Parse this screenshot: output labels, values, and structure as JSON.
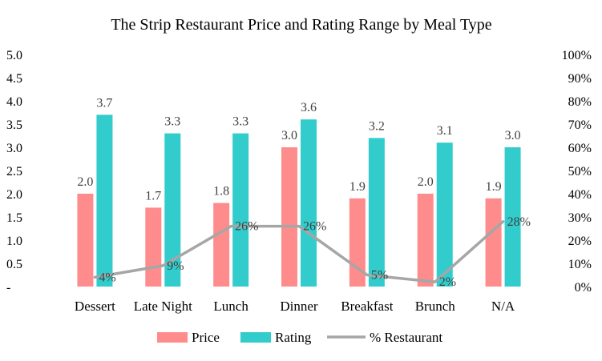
{
  "chart_data": {
    "type": "bar",
    "title": "The Strip Restaurant Price and Rating Range by Meal Type",
    "categories": [
      "Dessert",
      "Late Night",
      "Lunch",
      "Dinner",
      "Breakfast",
      "Brunch",
      "N/A"
    ],
    "series": [
      {
        "name": "Price",
        "type": "bar",
        "axis": "left",
        "color": "#FF8C8C",
        "values": [
          2.0,
          1.7,
          1.8,
          3.0,
          1.9,
          2.0,
          1.9
        ]
      },
      {
        "name": "Rating",
        "type": "bar",
        "axis": "left",
        "color": "#33CCCC",
        "values": [
          3.7,
          3.3,
          3.3,
          3.6,
          3.2,
          3.1,
          3.0
        ]
      },
      {
        "name": "% Restaurant",
        "type": "line",
        "axis": "right",
        "color": "#A6A6A6",
        "values": [
          4,
          9,
          26,
          26,
          5,
          2,
          28
        ]
      }
    ],
    "y_left": {
      "ylim": [
        0,
        5.0
      ],
      "ticks": [
        "-",
        "0.5",
        "1.0",
        "1.5",
        "2.0",
        "2.5",
        "3.0",
        "3.5",
        "4.0",
        "4.5",
        "5.0"
      ]
    },
    "y_right": {
      "ylim": [
        0,
        100
      ],
      "ticks": [
        "0%",
        "10%",
        "20%",
        "30%",
        "40%",
        "50%",
        "60%",
        "70%",
        "80%",
        "90%",
        "100%"
      ]
    },
    "legend": {
      "position": "bottom",
      "entries": [
        "Price",
        "Rating",
        "% Restaurant"
      ]
    },
    "grid": false
  }
}
